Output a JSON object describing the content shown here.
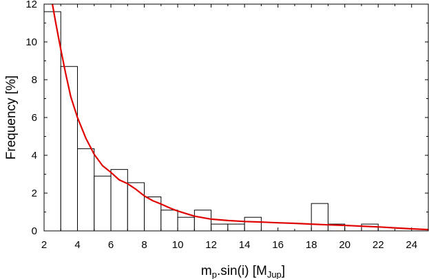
{
  "chart_data": {
    "type": "bar",
    "title": "",
    "xlabel_parts": [
      "m",
      "p",
      ".sin(i) [M",
      "Jup",
      "]"
    ],
    "ylabel": "Frequency [%]",
    "xlim": [
      2,
      25
    ],
    "ylim": [
      0,
      12
    ],
    "xticks": [
      2,
      4,
      6,
      8,
      10,
      12,
      14,
      16,
      18,
      20,
      22,
      24
    ],
    "yticks": [
      0,
      2,
      4,
      6,
      8,
      10,
      12
    ],
    "grid": false,
    "legend": "none",
    "histogram": {
      "bin_width": 1,
      "bins": [
        {
          "x0": 2,
          "value": 11.6
        },
        {
          "x0": 3,
          "value": 8.7
        },
        {
          "x0": 4,
          "value": 4.35
        },
        {
          "x0": 5,
          "value": 2.9
        },
        {
          "x0": 6,
          "value": 3.25
        },
        {
          "x0": 7,
          "value": 2.55
        },
        {
          "x0": 8,
          "value": 1.8
        },
        {
          "x0": 9,
          "value": 1.1
        },
        {
          "x0": 10,
          "value": 0.72
        },
        {
          "x0": 11,
          "value": 1.1
        },
        {
          "x0": 12,
          "value": 0.36
        },
        {
          "x0": 13,
          "value": 0.36
        },
        {
          "x0": 14,
          "value": 0.72
        },
        {
          "x0": 15,
          "value": 0.0
        },
        {
          "x0": 16,
          "value": 0.0
        },
        {
          "x0": 17,
          "value": 0.0
        },
        {
          "x0": 18,
          "value": 1.45
        },
        {
          "x0": 19,
          "value": 0.36
        },
        {
          "x0": 20,
          "value": 0.0
        },
        {
          "x0": 21,
          "value": 0.36
        },
        {
          "x0": 22,
          "value": 0.0
        },
        {
          "x0": 23,
          "value": 0.0
        },
        {
          "x0": 24,
          "value": 0.0
        }
      ],
      "fill": "#ffffff",
      "stroke": "#000000"
    },
    "fit_curve": {
      "type": "line",
      "color": "#e00000",
      "x": [
        2.5,
        2.7,
        3.0,
        3.3,
        3.6,
        4.0,
        4.5,
        5.0,
        5.5,
        6.0,
        6.5,
        7.0,
        7.5,
        8.0,
        8.5,
        9.0,
        9.5,
        10.0,
        11.0,
        12.0,
        13.0,
        14.0,
        15.0,
        16.0,
        17.0,
        18.0,
        19.0,
        20.0,
        21.0,
        22.0,
        23.0,
        24.0,
        25.0
      ],
      "y": [
        12.0,
        11.0,
        9.6,
        8.3,
        7.1,
        6.0,
        4.9,
        4.05,
        3.45,
        3.1,
        2.7,
        2.5,
        2.2,
        1.85,
        1.6,
        1.42,
        1.22,
        1.05,
        0.78,
        0.62,
        0.55,
        0.5,
        0.47,
        0.43,
        0.4,
        0.36,
        0.32,
        0.29,
        0.25,
        0.21,
        0.16,
        0.11,
        0.07
      ]
    }
  }
}
